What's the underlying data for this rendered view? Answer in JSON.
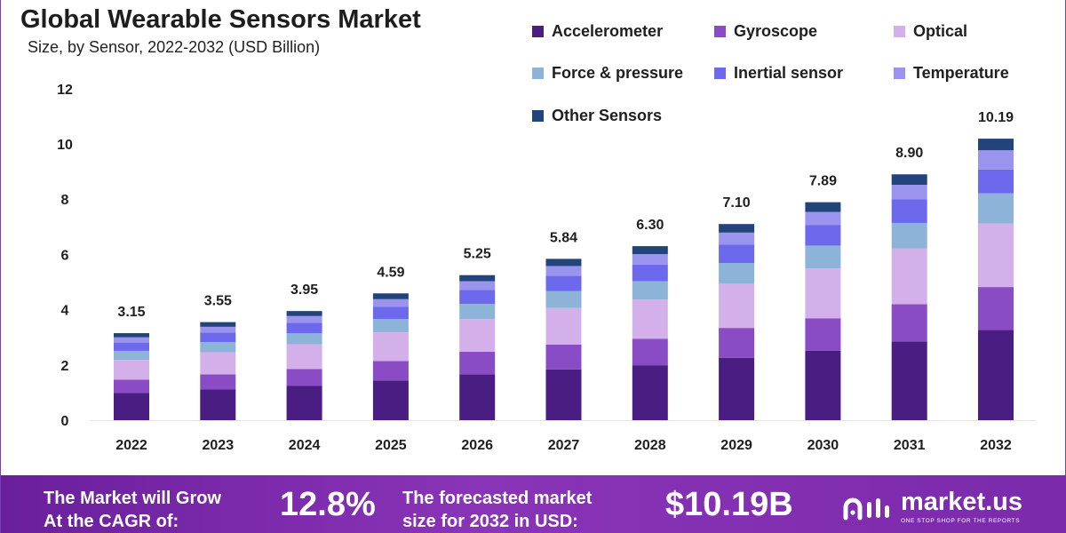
{
  "header": {
    "title": "Global Wearable Sensors Market",
    "subtitle": "Size, by Sensor, 2022-2032 (USD Billion)"
  },
  "chart_data": {
    "type": "bar",
    "stacked": true,
    "title": "Global Wearable Sensors Market",
    "subtitle": "Size, by Sensor, 2022-2032 (USD Billion)",
    "xlabel": "",
    "ylabel": "",
    "categories": [
      "2022",
      "2023",
      "2024",
      "2025",
      "2026",
      "2027",
      "2028",
      "2029",
      "2030",
      "2031",
      "2032"
    ],
    "yticks": [
      "0",
      "2",
      "4",
      "6",
      "8",
      "10",
      "12"
    ],
    "ylim": [
      0,
      12
    ],
    "grid": false,
    "legend_position": "top-right",
    "totals": [
      "3.15",
      "3.55",
      "3.95",
      "4.59",
      "5.25",
      "5.84",
      "6.30",
      "7.10",
      "7.89",
      "8.90",
      "10.19"
    ],
    "total_values": [
      3.15,
      3.55,
      3.95,
      4.59,
      5.25,
      5.84,
      6.3,
      7.1,
      7.89,
      8.9,
      10.19
    ],
    "series": [
      {
        "name": "Accelerometer",
        "color": "#4a1d83",
        "values": [
          0.98,
          1.12,
          1.25,
          1.44,
          1.66,
          1.84,
          1.99,
          2.26,
          2.51,
          2.85,
          3.27
        ]
      },
      {
        "name": "Gyroscope",
        "color": "#8a4cc4",
        "values": [
          0.49,
          0.54,
          0.6,
          0.7,
          0.82,
          0.9,
          0.96,
          1.08,
          1.18,
          1.35,
          1.55
        ]
      },
      {
        "name": "Optical",
        "color": "#d4b0ea",
        "values": [
          0.71,
          0.8,
          0.89,
          1.04,
          1.18,
          1.32,
          1.42,
          1.6,
          1.8,
          2.01,
          2.3
        ]
      },
      {
        "name": "Force & pressure",
        "color": "#8eb3d9",
        "values": [
          0.33,
          0.37,
          0.41,
          0.48,
          0.55,
          0.61,
          0.66,
          0.75,
          0.83,
          0.93,
          1.09
        ]
      },
      {
        "name": "Inertial sensor",
        "color": "#6d69ec",
        "values": [
          0.3,
          0.34,
          0.38,
          0.44,
          0.5,
          0.56,
          0.6,
          0.67,
          0.75,
          0.85,
          0.86
        ]
      },
      {
        "name": "Temperature",
        "color": "#9b94ef",
        "values": [
          0.19,
          0.21,
          0.24,
          0.28,
          0.32,
          0.35,
          0.38,
          0.43,
          0.47,
          0.53,
          0.7
        ]
      },
      {
        "name": "Other Sensors",
        "color": "#23447a",
        "values": [
          0.15,
          0.17,
          0.18,
          0.21,
          0.22,
          0.26,
          0.29,
          0.31,
          0.35,
          0.38,
          0.42
        ]
      }
    ]
  },
  "footer": {
    "cagr_line1": "The Market will Grow",
    "cagr_line2": "At the CAGR of:",
    "cagr_value": "12.8%",
    "forecast_line1": "The forecasted market",
    "forecast_line2": "size for 2032 in USD:",
    "forecast_value": "$10.19B",
    "brand_name": "market.us",
    "brand_tagline": "ONE STOP SHOP FOR THE REPORTS"
  }
}
